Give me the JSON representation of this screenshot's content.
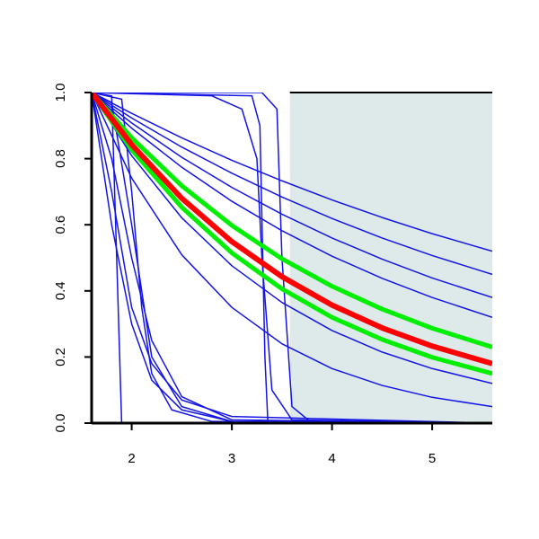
{
  "chart_data": {
    "type": "line",
    "xlim": [
      1.6,
      5.6
    ],
    "ylim": [
      0,
      1
    ],
    "xticks": [
      2,
      3,
      4,
      5
    ],
    "yticks": [
      {
        "value": 0,
        "label": "0.0"
      },
      0.2,
      0.4,
      0.6,
      0.8,
      {
        "value": 1,
        "label": "1.0"
      }
    ],
    "shaded_band": {
      "x": [
        3.58,
        5.6
      ],
      "color": "#deeaea"
    },
    "series": [
      {
        "color": "#1414e6",
        "x": [
          1.6,
          2,
          2.5,
          3,
          3.5,
          4,
          4.5,
          5,
          5.6
        ],
        "values": [
          1,
          0.937,
          0.863,
          0.795,
          0.733,
          0.675,
          0.622,
          0.573,
          0.52
        ]
      },
      {
        "color": "#1414e6",
        "x": [
          1.6,
          2,
          2.5,
          3,
          3.5,
          4,
          4.5,
          5,
          5.6
        ],
        "values": [
          1,
          0.923,
          0.835,
          0.756,
          0.684,
          0.619,
          0.56,
          0.507,
          0.45
        ]
      },
      {
        "color": "#1414e6",
        "x": [
          1.6,
          2,
          2.5,
          3,
          3.5,
          4,
          4.5,
          5,
          5.6
        ],
        "values": [
          1,
          0.908,
          0.804,
          0.713,
          0.632,
          0.56,
          0.496,
          0.439,
          0.38
        ]
      },
      {
        "color": "#1414e6",
        "x": [
          1.6,
          2,
          2.5,
          3,
          3.5,
          4,
          4.5,
          5,
          5.6
        ],
        "values": [
          1,
          0.892,
          0.774,
          0.671,
          0.582,
          0.505,
          0.438,
          0.38,
          0.32
        ]
      },
      {
        "color": "#1414e6",
        "x": [
          1.6,
          2,
          2.5,
          3,
          3.5,
          4,
          4.5,
          5,
          5.6
        ],
        "values": [
          1,
          0.809,
          0.621,
          0.476,
          0.365,
          0.28,
          0.215,
          0.165,
          0.12
        ]
      },
      {
        "color": "#1414e6",
        "x": [
          1.6,
          2,
          2.5,
          3,
          3.5,
          4,
          4.5,
          5,
          5.6
        ],
        "values": [
          1,
          0.741,
          0.509,
          0.35,
          0.24,
          0.165,
          0.114,
          0.078,
          0.05
        ]
      },
      {
        "color": "#1414e6",
        "x": [
          1.6,
          1.8,
          1.85,
          1.9,
          5.6
        ],
        "values": [
          1,
          0.99,
          0.5,
          0,
          0
        ]
      },
      {
        "color": "#1414e6",
        "x": [
          1.6,
          3.2,
          3.28,
          3.33,
          3.36,
          5.6
        ],
        "values": [
          1,
          0.99,
          0.9,
          0.2,
          0,
          0
        ]
      },
      {
        "color": "#1414e6",
        "x": [
          1.6,
          3.3,
          3.45,
          3.5,
          3.6,
          3.8,
          5.6
        ],
        "values": [
          1,
          1,
          0.95,
          0.5,
          0.05,
          0,
          0
        ]
      },
      {
        "color": "#1414e6",
        "x": [
          1.6,
          1.9,
          2,
          2.1,
          2.2,
          2.4,
          2.8,
          5.6
        ],
        "values": [
          1,
          0.98,
          0.7,
          0.35,
          0.15,
          0.04,
          0.005,
          0
        ]
      },
      {
        "color": "#1414e6",
        "x": [
          1.6,
          2.8,
          3.1,
          3.25,
          3.3,
          3.4,
          3.6,
          5.6
        ],
        "values": [
          1,
          0.99,
          0.95,
          0.8,
          0.5,
          0.1,
          0.01,
          0
        ]
      },
      {
        "color": "#1414e6",
        "x": [
          1.6,
          1.8,
          2,
          2.2,
          2.5,
          3,
          5.6
        ],
        "values": [
          1,
          0.6,
          0.3,
          0.13,
          0.04,
          0.005,
          0
        ]
      },
      {
        "color": "#1414e6",
        "x": [
          1.6,
          1.8,
          2,
          2.2,
          2.5,
          3,
          5.6
        ],
        "values": [
          1,
          0.8,
          0.5,
          0.25,
          0.08,
          0.01,
          0
        ]
      },
      {
        "color": "#1414e6",
        "x": [
          1.6,
          1.8,
          2,
          2.2,
          2.5,
          3,
          5.6
        ],
        "values": [
          1,
          0.7,
          0.35,
          0.18,
          0.07,
          0.02,
          0
        ]
      },
      {
        "color": "#1414e6",
        "x": [
          1.6,
          1.8,
          2,
          2.2,
          2.5,
          3,
          3.5,
          5.6
        ],
        "values": [
          1,
          0.97,
          0.6,
          0.2,
          0.05,
          0.005,
          0,
          0
        ]
      },
      {
        "color": "#00ee00",
        "line_width": 5,
        "x": [
          1.6,
          2,
          2.5,
          3,
          3.5,
          4,
          4.5,
          5,
          5.6
        ],
        "values": [
          1,
          0.863,
          0.718,
          0.598,
          0.497,
          0.414,
          0.345,
          0.287,
          0.23
        ]
      },
      {
        "color": "#00ee00",
        "line_width": 5,
        "x": [
          1.6,
          2,
          2.5,
          3,
          3.5,
          4,
          4.5,
          5,
          5.6
        ],
        "values": [
          1,
          0.827,
          0.653,
          0.515,
          0.406,
          0.32,
          0.253,
          0.199,
          0.15
        ]
      },
      {
        "color": "#ff0000",
        "line_width": 6,
        "x": [
          1.6,
          2,
          2.5,
          3,
          3.5,
          4,
          4.5,
          5,
          5.6
        ],
        "values": [
          1,
          0.842,
          0.68,
          0.549,
          0.443,
          0.357,
          0.288,
          0.233,
          0.18
        ]
      }
    ]
  }
}
